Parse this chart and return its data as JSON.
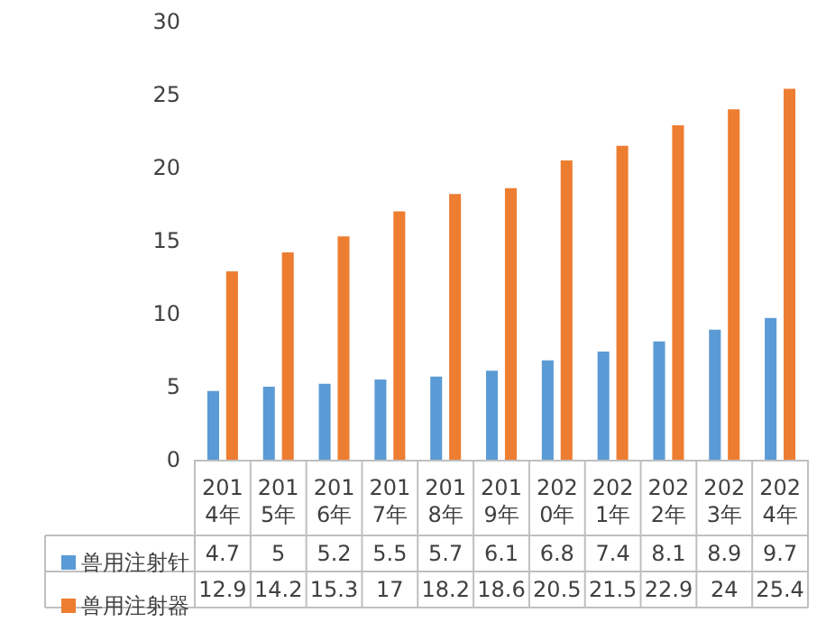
{
  "chart_data": {
    "type": "bar",
    "categories": [
      "2014年",
      "2015年",
      "2016年",
      "2017年",
      "2018年",
      "2019年",
      "2020年",
      "2021年",
      "2022年",
      "2023年",
      "2024年"
    ],
    "series": [
      {
        "name": "兽用注射针",
        "color": "#5b9bd5",
        "values": [
          4.7,
          5,
          5.2,
          5.5,
          5.7,
          6.1,
          6.8,
          7.4,
          8.1,
          8.9,
          9.7
        ]
      },
      {
        "name": "兽用注射器",
        "color": "#ed7d31",
        "values": [
          12.9,
          14.2,
          15.3,
          17,
          18.2,
          18.6,
          20.5,
          21.5,
          22.9,
          24,
          25.4
        ]
      }
    ],
    "ylim": [
      0,
      30
    ],
    "yticks": [
      0,
      5,
      10,
      15,
      20,
      25,
      30
    ],
    "grid": false,
    "legend": "bottom left",
    "data_labels": true
  }
}
